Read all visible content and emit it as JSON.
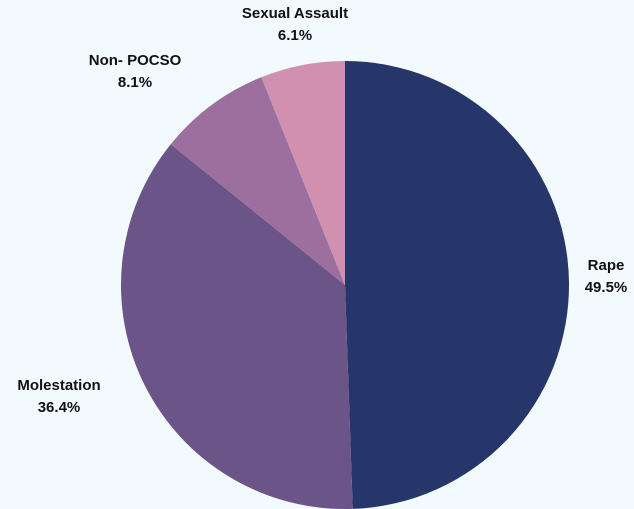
{
  "chart_data": {
    "type": "pie",
    "title": "",
    "start_angle_deg": 0,
    "direction": "clockwise",
    "slices": [
      {
        "label": "Rape",
        "value": 49.5,
        "value_label": "49.5%",
        "color": "#26366b",
        "label_pos": "right"
      },
      {
        "label": "Molestation",
        "value": 36.4,
        "value_label": "36.4%",
        "color": "#6a5488",
        "label_pos": "bottom-left"
      },
      {
        "label": "Non- POCSO",
        "value": 8.1,
        "value_label": "8.1%",
        "color": "#9c6f9f",
        "label_pos": "top-left"
      },
      {
        "label": "Sexual Assault",
        "value": 6.1,
        "value_label": "6.1%",
        "color": "#d190b0",
        "label_pos": "top"
      }
    ],
    "legend": "none",
    "background": "#f3fafd"
  }
}
